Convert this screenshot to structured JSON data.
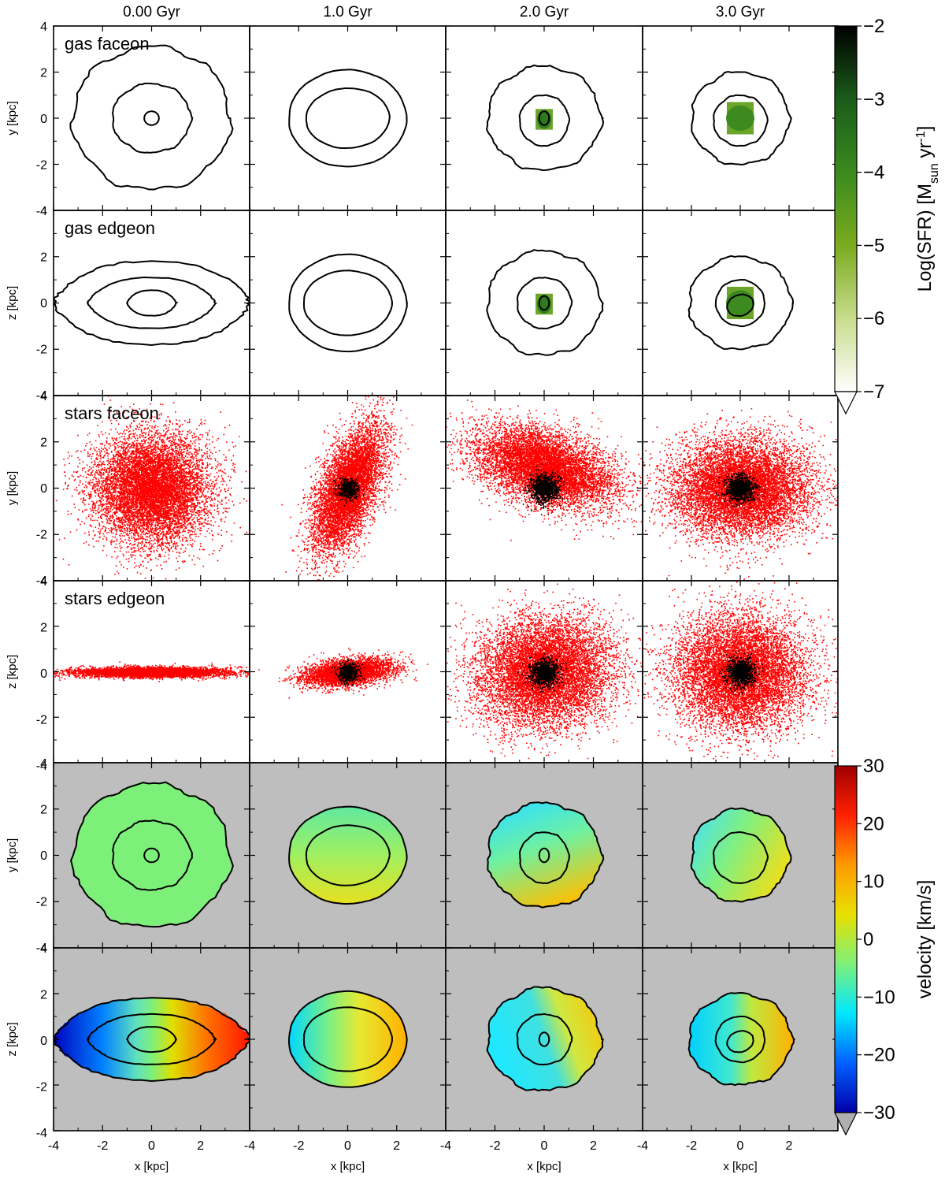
{
  "chart_data": {
    "type": "panel-grid",
    "columns": [
      "0.00 Gyr",
      "1.0 Gyr",
      "2.0 Gyr",
      "3.0 Gyr"
    ],
    "axis_range": [
      -4,
      4
    ],
    "x_ticks": [
      "-4",
      "-2",
      "0",
      "2"
    ],
    "y_ticks": [
      "-4",
      "-2",
      "0",
      "2",
      "4"
    ],
    "xlabel": "x [kpc]",
    "rows": [
      {
        "label": "gas faceon",
        "ylabel": "y [kpc]",
        "kind": "gas"
      },
      {
        "label": "gas edgeon",
        "ylabel": "z [kpc]",
        "kind": "gas"
      },
      {
        "label": "stars faceon",
        "ylabel": "y [kpc]",
        "kind": "stars"
      },
      {
        "label": "stars edgeon",
        "ylabel": "z [kpc]",
        "kind": "stars"
      },
      {
        "label": "",
        "ylabel": "y [kpc]",
        "kind": "velocity"
      },
      {
        "label": "",
        "ylabel": "z [kpc]",
        "kind": "velocity"
      }
    ],
    "sfr_colorbar": {
      "label": "Log(SFR) [M",
      "label_sub": "sun",
      "label_mid": " yr",
      "label_sup": "-1",
      "label_end": "]",
      "min": -7,
      "max": -2,
      "ticks": [
        "-2",
        "-3",
        "-4",
        "-5",
        "-6",
        "-7"
      ],
      "colors": [
        "#000000",
        "#1a5c1a",
        "#3a8a1e",
        "#7bab1f",
        "#c8dc8c",
        "#ffffff"
      ]
    },
    "velocity_colorbar": {
      "label": "velocity [km/s]",
      "min": -30,
      "max": 30,
      "ticks": [
        "30",
        "20",
        "10",
        "0",
        "-10",
        "-20",
        "-30"
      ],
      "colors": [
        "#a00000",
        "#ff2000",
        "#ff9a00",
        "#e8e000",
        "#7df07a",
        "#00e8ff",
        "#0060ff",
        "#0000a8"
      ]
    },
    "colors": {
      "stars": "#ff0000",
      "stars_core": "#000000",
      "velocity_background": "#bebebe",
      "contour": "#000000"
    }
  }
}
